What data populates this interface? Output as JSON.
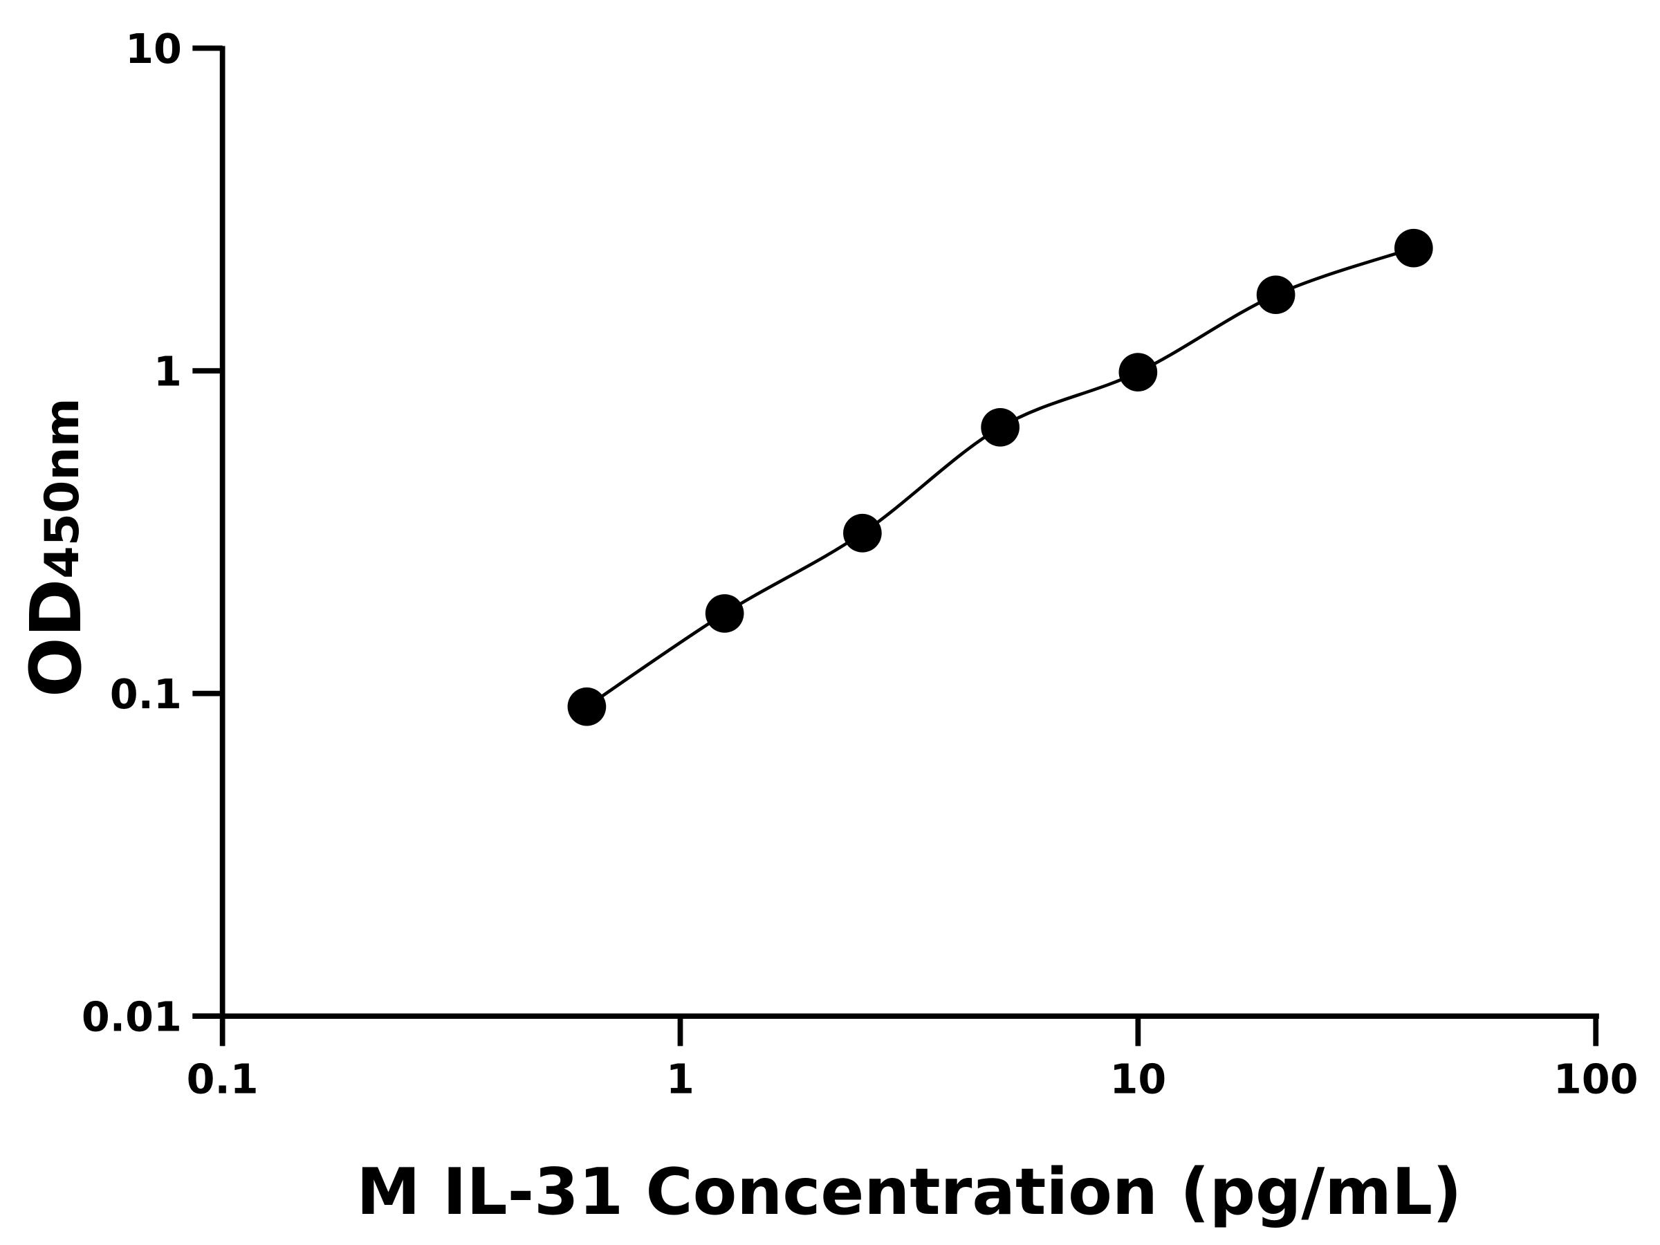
{
  "chart_data": {
    "type": "scatter",
    "title": "",
    "xlabel": "M IL-31 Concentration (pg/mL)",
    "ylabel_main": "OD",
    "ylabel_sub": "450nm",
    "x_scale": "log",
    "y_scale": "log",
    "xlim": [
      0.1,
      100
    ],
    "ylim": [
      0.01,
      10
    ],
    "x_ticks": [
      "0.1",
      "1",
      "10",
      "100"
    ],
    "y_ticks": [
      "0.01",
      "0.1",
      "1",
      "10"
    ],
    "grid": false,
    "fit_line": true,
    "series": [
      {
        "x": [
          0.625,
          1.25,
          2.5,
          5,
          10,
          20,
          40
        ],
        "y": [
          0.091,
          0.177,
          0.314,
          0.668,
          0.99,
          1.72,
          2.4
        ]
      }
    ],
    "colors": {
      "marker": "#000000",
      "line": "#000000"
    }
  }
}
